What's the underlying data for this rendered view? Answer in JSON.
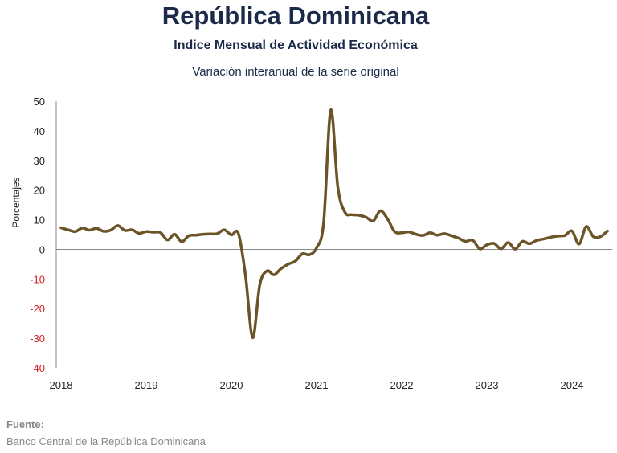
{
  "header": {
    "title": "República Dominicana",
    "subtitle": "Indice Mensual de  Actividad Económica",
    "subtitle2": "Variación interanual de la serie original"
  },
  "source": {
    "heading": "Fuente:",
    "text": "Banco Central de la República Dominicana"
  },
  "colors": {
    "line": "#6b5427",
    "title": "#1c2a4a",
    "negative_ticks": "#d0202a"
  },
  "chart_data": {
    "type": "line",
    "ylabel": "Porcentajes",
    "ylim": [
      -40,
      50
    ],
    "yticks": [
      50,
      40,
      30,
      20,
      10,
      0,
      -10,
      -20,
      -30,
      -40
    ],
    "xlim": [
      2018.0,
      2024.6
    ],
    "xticks": [
      "2018",
      "2019",
      "2020",
      "2021",
      "2022",
      "2023",
      "2024"
    ],
    "grid": false,
    "series": [
      {
        "x": [
          "2018-01",
          "2018-02",
          "2018-03",
          "2018-04",
          "2018-05",
          "2018-06",
          "2018-07",
          "2018-08",
          "2018-09",
          "2018-10",
          "2018-11",
          "2018-12",
          "2019-01",
          "2019-02",
          "2019-03",
          "2019-04",
          "2019-05",
          "2019-06",
          "2019-07",
          "2019-08",
          "2019-09",
          "2019-10",
          "2019-11",
          "2019-12",
          "2020-01",
          "2020-02",
          "2020-03",
          "2020-04",
          "2020-05",
          "2020-06",
          "2020-07",
          "2020-08",
          "2020-09",
          "2020-10",
          "2020-11",
          "2020-12",
          "2021-01",
          "2021-02",
          "2021-03",
          "2021-04",
          "2021-05",
          "2021-06",
          "2021-07",
          "2021-08",
          "2021-09",
          "2021-10",
          "2021-11",
          "2021-12",
          "2022-01",
          "2022-02",
          "2022-03",
          "2022-04",
          "2022-05",
          "2022-06",
          "2022-07",
          "2022-08",
          "2022-09",
          "2022-10",
          "2022-11",
          "2022-12",
          "2023-01",
          "2023-02",
          "2023-03",
          "2023-04",
          "2023-05",
          "2023-06",
          "2023-07",
          "2023-08",
          "2023-09",
          "2023-10",
          "2023-11",
          "2023-12",
          "2024-01",
          "2024-02",
          "2024-03",
          "2024-04",
          "2024-05",
          "2024-06"
        ],
        "y": [
          7.3,
          6.6,
          6.0,
          7.2,
          6.5,
          7.1,
          6.1,
          6.5,
          8.0,
          6.4,
          6.6,
          5.4,
          6.0,
          5.8,
          5.7,
          3.2,
          5.1,
          2.6,
          4.6,
          4.8,
          5.1,
          5.2,
          5.3,
          6.6,
          4.9,
          5.3,
          -9.0,
          -29.8,
          -12.0,
          -7.3,
          -8.6,
          -6.5,
          -5.0,
          -4.0,
          -1.5,
          -1.8,
          0.5,
          9.0,
          47.0,
          21.0,
          12.5,
          11.7,
          11.5,
          10.8,
          9.6,
          13.0,
          10.3,
          6.0,
          5.6,
          5.9,
          5.1,
          4.7,
          5.6,
          4.8,
          5.3,
          4.6,
          3.8,
          2.7,
          3.1,
          0.2,
          1.5,
          2.0,
          0.2,
          2.3,
          0.1,
          2.7,
          1.9,
          3.0,
          3.5,
          4.1,
          4.5,
          4.7,
          6.2,
          1.8,
          7.7,
          4.3,
          4.3,
          6.2
        ]
      }
    ]
  }
}
